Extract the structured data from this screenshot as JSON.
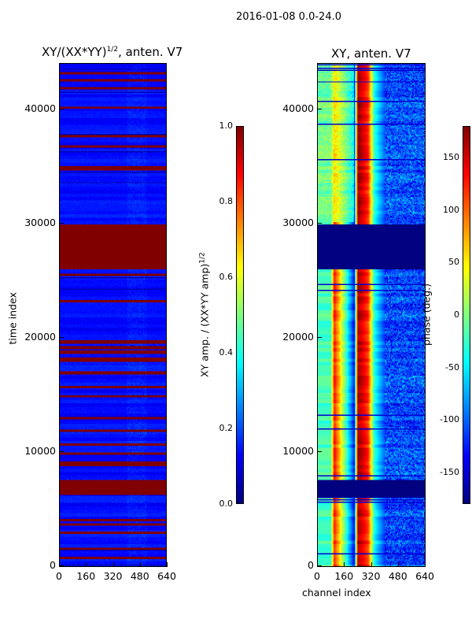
{
  "suptitle": "2016-01-08 0.0-24.0",
  "chart_data": [
    {
      "type": "heatmap",
      "title_main": "XY/(XX*YY)",
      "title_sup": "1/2",
      "title_tail": ", anten. V7",
      "xlabel": "",
      "ylabel": "time index",
      "xlim": [
        0,
        640
      ],
      "ylim": [
        0,
        44000
      ],
      "xticks": [
        "0",
        "160",
        "320",
        "480",
        "640"
      ],
      "yticks": [
        "0",
        "10000",
        "20000",
        "30000",
        "40000"
      ],
      "colormap": "jet",
      "colorbar": {
        "label_main": "XY amp. / (XX*YY amp)",
        "label_sup": "1/2",
        "range": [
          0,
          1
        ],
        "ticks": [
          "0.0",
          "0.2",
          "0.4",
          "0.6",
          "0.8",
          "1.0"
        ]
      },
      "base_value": 0.15,
      "flagged_value": 1.0,
      "flagged_time_ranges": [
        [
          700,
          800
        ],
        [
          1500,
          1600
        ],
        [
          2900,
          3000
        ],
        [
          3600,
          3700
        ],
        [
          4000,
          4100
        ],
        [
          6300,
          7500
        ],
        [
          8800,
          9100
        ],
        [
          9800,
          9900
        ],
        [
          10600,
          10700
        ],
        [
          11800,
          11900
        ],
        [
          12900,
          13000
        ],
        [
          14800,
          14900
        ],
        [
          15600,
          15700
        ],
        [
          16800,
          17000
        ],
        [
          17900,
          18200
        ],
        [
          18600,
          18800
        ],
        [
          19000,
          19200
        ],
        [
          19500,
          19700
        ],
        [
          23100,
          23200
        ],
        [
          25400,
          25500
        ],
        [
          26000,
          26200
        ],
        [
          26300,
          29800
        ],
        [
          34600,
          34900
        ],
        [
          36600,
          36700
        ],
        [
          37500,
          37600
        ],
        [
          40000,
          40100
        ],
        [
          41700,
          41800
        ],
        [
          42400,
          42500
        ],
        [
          43000,
          43100
        ]
      ]
    },
    {
      "type": "heatmap",
      "title": "XY, anten. V7",
      "xlabel": "channel index",
      "ylabel": "",
      "xlim": [
        0,
        640
      ],
      "ylim": [
        0,
        44000
      ],
      "xticks": [
        "0",
        "160",
        "320",
        "480",
        "640"
      ],
      "yticks": [
        "0",
        "10000",
        "20000",
        "30000",
        "40000"
      ],
      "colormap": "jet",
      "colorbar": {
        "label": "phase (deg.)",
        "range": [
          -180,
          180
        ],
        "ticks": [
          "-150",
          "-100",
          "-50",
          "0",
          "50",
          "100",
          "150"
        ]
      },
      "phase_profile_channels": [
        0,
        80,
        100,
        220,
        240,
        300,
        340,
        400,
        640
      ],
      "phase_profile_deg": [
        -20,
        -20,
        130,
        -130,
        170,
        120,
        -40,
        -110,
        -110
      ],
      "flagged_value": -180,
      "flagged_time_ranges": [
        [
          6100,
          7500
        ],
        [
          26000,
          29800
        ]
      ]
    }
  ]
}
